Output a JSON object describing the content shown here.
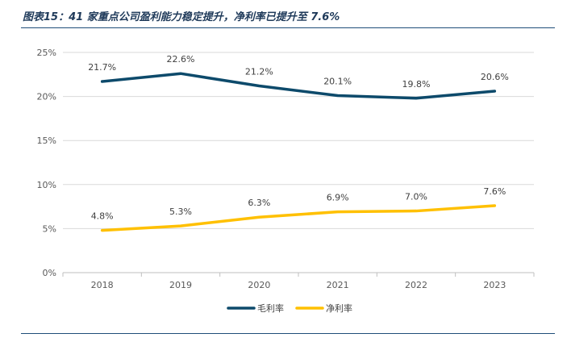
{
  "page": {
    "title": "图表15：41 家重点公司盈利能力稳定提升，净利率已提升至 7.6%"
  },
  "chart_data": {
    "type": "line",
    "title": "",
    "xlabel": "",
    "ylabel": "",
    "categories": [
      "2018",
      "2019",
      "2020",
      "2021",
      "2022",
      "2023"
    ],
    "ylim": [
      0,
      25
    ],
    "yticks": [
      "0%",
      "5%",
      "10%",
      "15%",
      "20%",
      "25%"
    ],
    "grid": true,
    "legend_position": "bottom",
    "series": [
      {
        "name": "毛利率",
        "color": "#0d4a6b",
        "values": [
          21.7,
          22.6,
          21.2,
          20.1,
          19.8,
          20.6
        ],
        "labels": [
          "21.7%",
          "22.6%",
          "21.2%",
          "20.1%",
          "19.8%",
          "20.6%"
        ]
      },
      {
        "name": "净利率",
        "color": "#ffc000",
        "values": [
          4.8,
          5.3,
          6.3,
          6.9,
          7.0,
          7.6
        ],
        "labels": [
          "4.8%",
          "5.3%",
          "6.3%",
          "6.9%",
          "7.0%",
          "7.6%"
        ]
      }
    ]
  }
}
